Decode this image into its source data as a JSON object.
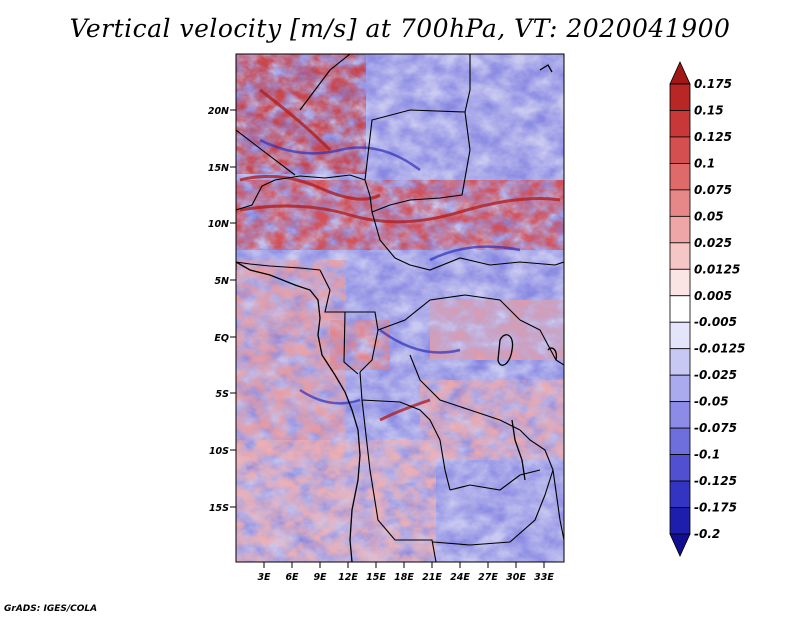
{
  "title": "Vertical velocity [m/s] at 700hPa, VT: 2020041900",
  "credit": "GrADS: IGES/COLA",
  "map": {
    "lat_labels": [
      "20N",
      "15N",
      "10N",
      "5N",
      "EQ",
      "5S",
      "10S",
      "15S"
    ],
    "lon_labels": [
      "3E",
      "6E",
      "9E",
      "12E",
      "15E",
      "18E",
      "21E",
      "24E",
      "27E",
      "30E",
      "33E"
    ]
  },
  "colorbar": {
    "levels": [
      "0.175",
      "0.15",
      "0.125",
      "0.1",
      "0.075",
      "0.05",
      "0.025",
      "0.0125",
      "0.005",
      "-0.005",
      "-0.0125",
      "-0.025",
      "-0.05",
      "-0.075",
      "-0.1",
      "-0.125",
      "-0.175",
      "-0.2"
    ],
    "colors": [
      "#a01818",
      "#b82626",
      "#c83838",
      "#d45050",
      "#de6a6a",
      "#e68888",
      "#eea6a6",
      "#f5c6c6",
      "#fbe4e4",
      "#ffffff",
      "#e4e4fa",
      "#c8c8f4",
      "#aaaaee",
      "#8c8ce6",
      "#6e6edc",
      "#5050d0",
      "#3434c2",
      "#1e1eac",
      "#120e90"
    ]
  }
}
